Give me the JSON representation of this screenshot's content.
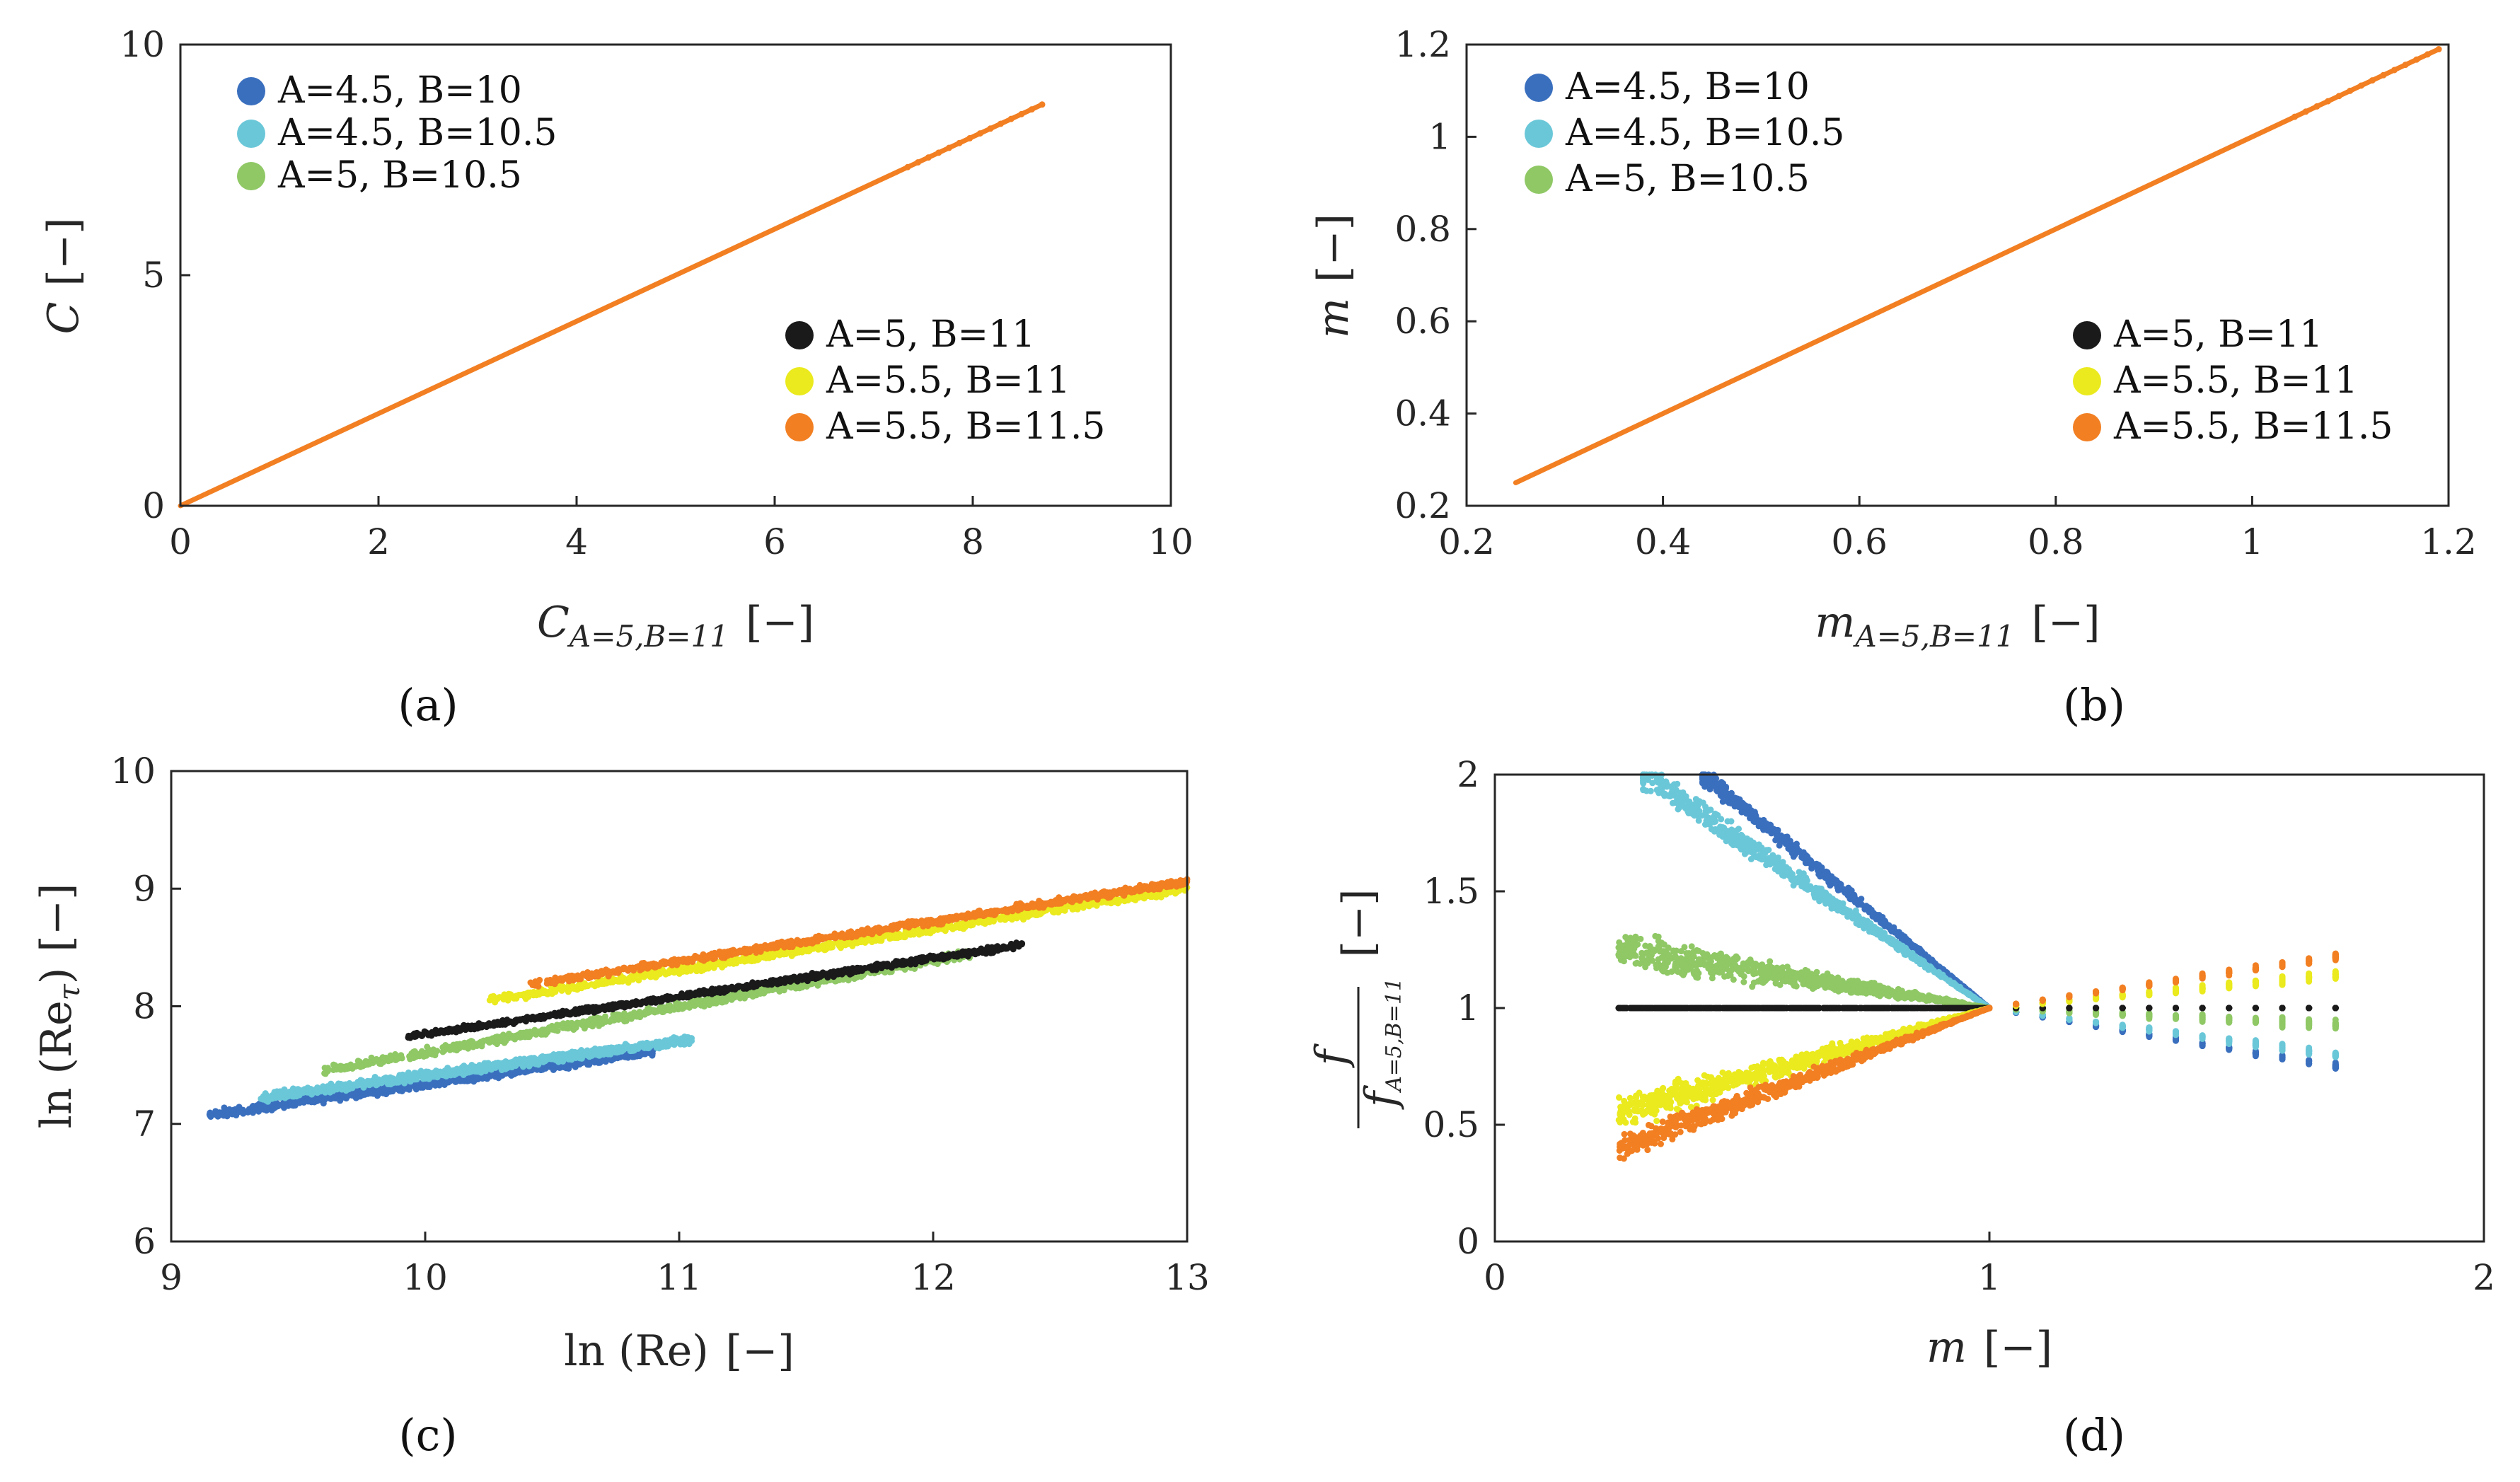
{
  "colors": {
    "A4.5_B10": "#3a6fbe",
    "A4.5_B10.5": "#6ac7d8",
    "A5_B10.5": "#8fc865",
    "A5_B11": "#1a1a1a",
    "A5.5_B11": "#eaea1e",
    "A5.5_B11.5": "#f27f22"
  },
  "chart_data": [
    {
      "id": "a",
      "type": "scatter",
      "panel_label": "(a)",
      "xlabel": "C_{A=5,B=11} [−]",
      "xlabel_main": "C",
      "xlabel_sub": "A=5,B=11",
      "xlabel_unit": "[−]",
      "ylabel": "C [−]",
      "ylabel_main": "C",
      "ylabel_unit": "[−]",
      "xlim": [
        0,
        10
      ],
      "ylim": [
        0,
        10
      ],
      "xticks": [
        "0",
        "2",
        "4",
        "6",
        "8",
        "10"
      ],
      "yticks": [
        "0",
        "5",
        "10"
      ],
      "legend_upper": [
        "A=4.5, B=10",
        "A=4.5, B=10.5",
        "A=5, B=10.5"
      ],
      "legend_lower": [
        "A=5, B=11",
        "A=5.5, B=11",
        "A=5.5, B=11.5"
      ],
      "series": [
        {
          "name": "A=5.5, B=11.5",
          "color_key": "A5.5_B11.5",
          "kind": "line",
          "x": [
            0,
            8.7
          ],
          "y": [
            0,
            8.7
          ]
        }
      ]
    },
    {
      "id": "b",
      "type": "scatter",
      "panel_label": "(b)",
      "xlabel": "m_{A=5,B=11} [−]",
      "xlabel_main": "m",
      "xlabel_sub": "A=5,B=11",
      "xlabel_unit": "[−]",
      "ylabel": "m [−]",
      "ylabel_main": "m",
      "ylabel_unit": "[−]",
      "xlim": [
        0.2,
        1.2
      ],
      "ylim": [
        0.2,
        1.2
      ],
      "xticks": [
        "0.2",
        "0.4",
        "0.6",
        "0.8",
        "1",
        "1.2"
      ],
      "yticks": [
        "0.2",
        "0.4",
        "0.6",
        "0.8",
        "1",
        "1.2"
      ],
      "legend_upper": [
        "A=4.5, B=10",
        "A=4.5, B=10.5",
        "A=5, B=10.5"
      ],
      "legend_lower": [
        "A=5, B=11",
        "A=5.5, B=11",
        "A=5.5, B=11.5"
      ],
      "series": [
        {
          "name": "A=5.5, B=11.5",
          "color_key": "A5.5_B11.5",
          "kind": "line",
          "x": [
            0.25,
            1.19
          ],
          "y": [
            0.25,
            1.19
          ]
        }
      ]
    },
    {
      "id": "c",
      "type": "scatter",
      "panel_label": "(c)",
      "xlabel": "ln (Re) [−]",
      "xlabel_main": "ln (Re)",
      "xlabel_unit": "[−]",
      "ylabel": "ln (Re_τ) [−]",
      "ylabel_main": "ln (Re",
      "ylabel_sub": "τ",
      "ylabel_close": ")",
      "ylabel_unit": "[−]",
      "xlim": [
        9,
        13
      ],
      "ylim": [
        6,
        10
      ],
      "xticks": [
        "9",
        "10",
        "11",
        "12",
        "13"
      ],
      "yticks": [
        "6",
        "7",
        "8",
        "9",
        "10"
      ],
      "series": [
        {
          "name": "A=4.5, B=10",
          "color_key": "A4.5_B10",
          "kind": "band",
          "x": [
            9.15,
            10.9
          ],
          "y": [
            7.08,
            7.62
          ],
          "spread": 0.1
        },
        {
          "name": "A=4.5, B=10.5",
          "color_key": "A4.5_B10.5",
          "kind": "band",
          "x": [
            9.35,
            11.05
          ],
          "y": [
            7.22,
            7.72
          ],
          "spread": 0.1
        },
        {
          "name": "A=5, B=10.5",
          "color_key": "A5_B10.5",
          "kind": "band",
          "x": [
            9.6,
            12.15
          ],
          "y": [
            7.45,
            8.45
          ],
          "spread": 0.1
        },
        {
          "name": "A=5, B=11",
          "color_key": "A5_B11",
          "kind": "band",
          "x": [
            9.9,
            12.35
          ],
          "y": [
            7.73,
            8.52
          ],
          "spread": 0.07
        },
        {
          "name": "A=5.5, B=11",
          "color_key": "A5.5_B11",
          "kind": "band",
          "x": [
            10.25,
            13.0
          ],
          "y": [
            8.05,
            9.0
          ],
          "spread": 0.09
        },
        {
          "name": "A=5.5, B=11.5",
          "color_key": "A5.5_B11.5",
          "kind": "band",
          "x": [
            10.4,
            13.0
          ],
          "y": [
            8.18,
            9.06
          ],
          "spread": 0.08
        }
      ]
    },
    {
      "id": "d",
      "type": "scatter",
      "panel_label": "(d)",
      "xlabel": "m [−]",
      "xlabel_main": "m",
      "xlabel_unit": "[−]",
      "ylabel": "f / f_{A=5,B=11} [−]",
      "ylabel_num": "f",
      "ylabel_den": "f",
      "ylabel_den_sub": "A=5,B=11",
      "ylabel_unit": "[−]",
      "xlim": [
        0,
        2
      ],
      "ylim": [
        0,
        2
      ],
      "xticks": [
        "0",
        "1",
        "2"
      ],
      "yticks": [
        "0",
        "0.5",
        "1",
        "1.5",
        "2"
      ],
      "series": [
        {
          "name": "A=4.5, B=10",
          "color_key": "A4.5_B10",
          "kind": "curve",
          "x": [
            0.42,
            1.0,
            1.7
          ],
          "y": [
            2.0,
            1.0,
            0.75
          ],
          "x_left_wide": 0.32,
          "spread": 0.06
        },
        {
          "name": "A=4.5, B=10.5",
          "color_key": "A4.5_B10.5",
          "kind": "curve",
          "x": [
            0.3,
            1.0,
            1.7
          ],
          "y": [
            2.0,
            1.0,
            0.8
          ],
          "x_left_wide": 0.26,
          "spread": 0.08
        },
        {
          "name": "A=5, B=10.5",
          "color_key": "A5_B10.5",
          "kind": "curve",
          "x": [
            0.25,
            1.0,
            1.7
          ],
          "y": [
            1.25,
            1.0,
            0.93
          ],
          "x_left_wide": 0.25,
          "spread": 0.1
        },
        {
          "name": "A=5, B=11",
          "color_key": "A5_B11",
          "kind": "curve",
          "x": [
            0.25,
            1.0,
            1.7
          ],
          "y": [
            1.0,
            1.0,
            1.0
          ],
          "x_left_wide": 0.25,
          "spread": 0.0
        },
        {
          "name": "A=5.5, B=11",
          "color_key": "A5.5_B11",
          "kind": "curve",
          "x": [
            0.25,
            1.0,
            1.7
          ],
          "y": [
            0.55,
            1.0,
            1.14
          ],
          "x_left_wide": 0.25,
          "spread": 0.09
        },
        {
          "name": "A=5.5, B=11.5",
          "color_key": "A5.5_B11.5",
          "kind": "curve",
          "x": [
            0.25,
            1.0,
            1.7
          ],
          "y": [
            0.4,
            1.0,
            1.22
          ],
          "x_left_wide": 0.25,
          "spread": 0.07
        }
      ]
    }
  ]
}
